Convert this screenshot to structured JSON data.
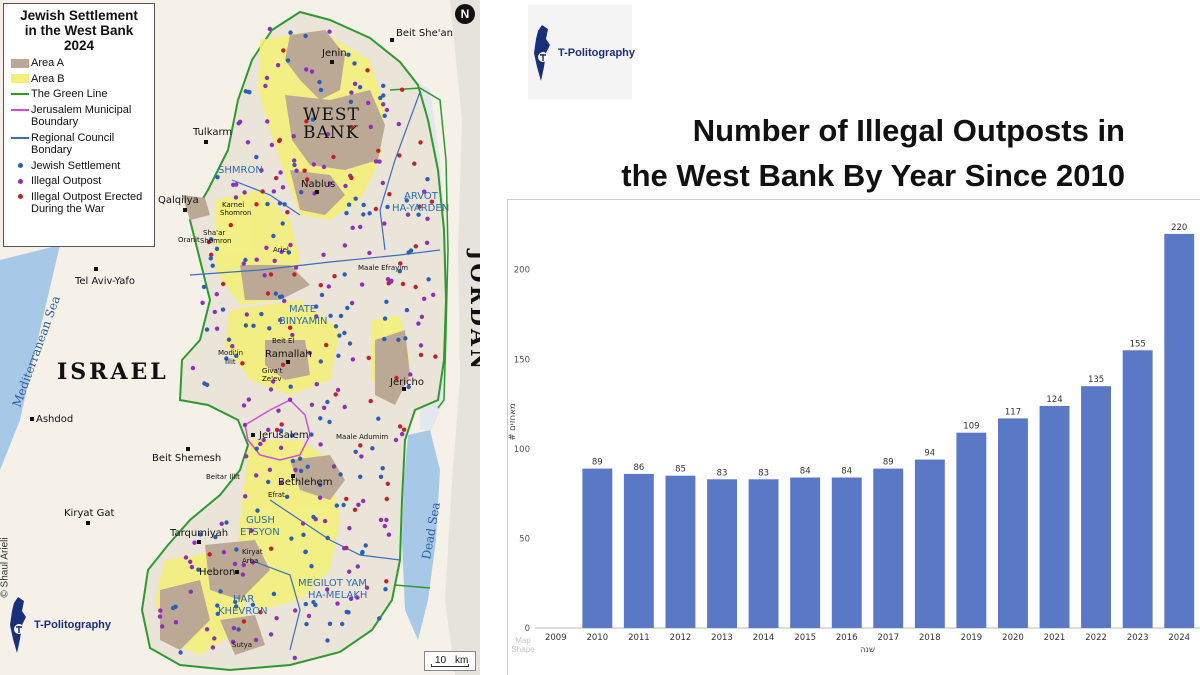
{
  "map": {
    "legend": {
      "title_lines": [
        "Jewish Settlement",
        "in the West Bank",
        "2024"
      ],
      "items": [
        {
          "label": "Area A",
          "type": "box",
          "color": "#bca995"
        },
        {
          "label": "Area B",
          "type": "box",
          "color": "#f3f07a"
        },
        {
          "label": "The Green Line",
          "type": "line",
          "color": "#2e9a2e"
        },
        {
          "label": "Jerusalem Municipal Boundary",
          "type": "line",
          "color": "#d04fd0"
        },
        {
          "label": "Regional Council Bondary",
          "type": "line",
          "color": "#3a6fc0"
        },
        {
          "label": "Jewish Settlement",
          "type": "dot",
          "color": "#2b5fb5"
        },
        {
          "label": "Illegal Outpost",
          "type": "dot",
          "color": "#8e2fb8"
        },
        {
          "label": "Illegal Outpost Erected During the War",
          "type": "dot",
          "color": "#c41f2a"
        }
      ]
    },
    "north_symbol": "N",
    "cities": {
      "jenin": "Jenin",
      "beit_shean": "Beit She'an",
      "tulkarm": "Tulkarm",
      "nablus": "Nablus",
      "qalqilya": "Qalqilya",
      "tel_aviv": "Tel Aviv-Yafo",
      "ramallah": "Ramallah",
      "jericho": "Jericho",
      "jerusalem": "Jerusalem",
      "ashdod": "Ashdod",
      "beit_shemesh": "Beit Shemesh",
      "bethlehem": "Bethlehem",
      "kiryat_gat": "Kiryat Gat",
      "tarqumiyah": "Tarqumiyah",
      "hebron": "Hebron"
    },
    "towns": {
      "karnei_1": "Karnei",
      "karnei_2": "Shomron",
      "oranit": "Oranit",
      "shaar_1": "Sha'ar",
      "shaar_2": "Shomron",
      "ariel": "Ariel",
      "maale_efrayim": "Maale Efrayim",
      "beit_el": "Beit El",
      "modiin_1": "Modi'in",
      "modiin_2": "Illit",
      "givat_1": "Giva't",
      "givat_2": "Ze'ev",
      "maale_adumim": "Maale Adumim",
      "beitar": "Beitar Illit",
      "efrat": "Efrat",
      "kiryat_1": "Kiryat",
      "kiryat_2": "Arba",
      "sutya": "Sutya"
    },
    "regions": {
      "west_bank_1": "WEST",
      "west_bank_2": "BANK",
      "shmron": "SHMRON",
      "arvot_1": "ARVOT",
      "arvot_2": "HA-YARDEN",
      "mate_1": "MATE",
      "mate_2": "BINYAMIN",
      "gush_1": "GUSH",
      "gush_2": "ETSYON",
      "har_1": "HAR",
      "har_2": "KHEVRON",
      "megilot_1": "MEGILOT YAM",
      "megilot_2": "HA-MELAKH"
    },
    "countries": {
      "israel": "ISRAEL",
      "jordan": "JORDAN"
    },
    "seas": {
      "mediterranean": "Mediterranean Sea",
      "dead_sea": "Dead Sea"
    },
    "credit": "© Shaul Arieli",
    "scale": {
      "value": "10",
      "unit": "km"
    },
    "logo_text": "T-Politography",
    "colors": {
      "area_a": "#bca995",
      "area_b": "#f3f07a",
      "land": "#ebe4d9",
      "outside": "#f5f0e8",
      "sea": "#a8c8e8",
      "settlement": "#2b5fb5",
      "outpost": "#8e2fb8",
      "war_outpost": "#c41f2a"
    }
  },
  "top_logo_text": "T-Politography",
  "title_lines": [
    "Number of Illegal Outposts in",
    "the West Bank By Year Since 2010"
  ],
  "watermark_lines": [
    "Map",
    "Shape"
  ],
  "chart_data": {
    "type": "bar",
    "categories": [
      "2009",
      "2010",
      "2011",
      "2012",
      "2013",
      "2014",
      "2015",
      "2016",
      "2017",
      "2018",
      "2019",
      "2020",
      "2021",
      "2022",
      "2023",
      "2024"
    ],
    "values": [
      null,
      89,
      86,
      85,
      83,
      83,
      84,
      84,
      89,
      94,
      109,
      117,
      124,
      135,
      155,
      220
    ],
    "xlabel": "שנה",
    "ylabel": "# מאחזים",
    "ylim": [
      0,
      230
    ],
    "yticks": [
      0,
      50,
      100,
      150,
      200
    ],
    "bar_color": "#5b78c6",
    "grid": false
  }
}
